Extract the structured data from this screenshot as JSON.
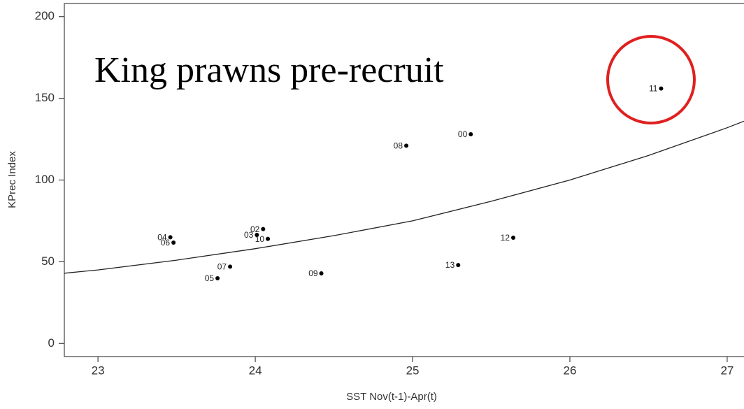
{
  "chart_data": {
    "type": "scatter",
    "title": "King prawns pre-recruit",
    "x_label": "SST Nov(t-1)-Apr(t)",
    "y_label": "KPrec Index",
    "xlim": [
      22.786,
      27.107
    ],
    "ylim": [
      -8,
      208
    ],
    "xticks": [
      23,
      24,
      25,
      26,
      27
    ],
    "yticks": [
      0,
      50,
      100,
      150,
      200
    ],
    "color": "#000000",
    "point_labels": [
      "11",
      "00",
      "08",
      "12",
      "13",
      "09",
      "07",
      "05",
      "04",
      "06",
      "02",
      "03",
      "10"
    ],
    "x": [
      26.58,
      25.37,
      24.96,
      25.64,
      25.29,
      24.42,
      23.84,
      23.76,
      23.46,
      23.48,
      24.05,
      24.01,
      24.08
    ],
    "y": [
      156,
      128,
      121,
      64.7,
      48,
      42.9,
      47,
      39.9,
      65,
      61.7,
      70,
      66.4,
      64
    ],
    "fit": {
      "x": [
        22.786,
        23,
        23.5,
        24,
        24.5,
        25,
        25.5,
        26,
        26.5,
        27,
        27.107
      ],
      "y": [
        43,
        45,
        51,
        58,
        66,
        75,
        87,
        100,
        115,
        132,
        136
      ]
    }
  }
}
